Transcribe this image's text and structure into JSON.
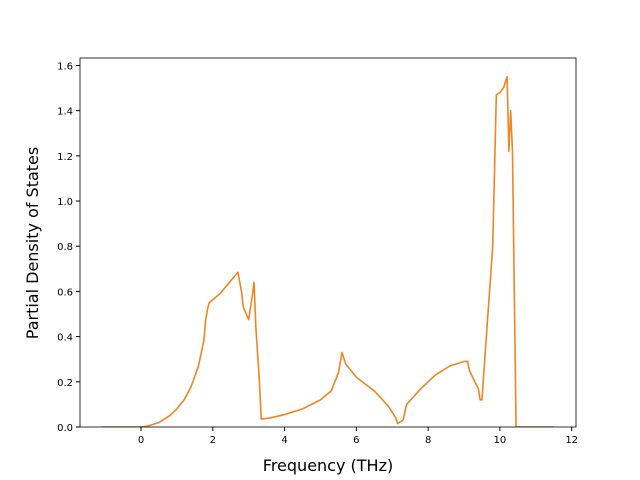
{
  "chart_data": {
    "type": "line",
    "xlabel": "Frequency (THz)",
    "ylabel": "Partial Density of States",
    "color": "#f08526",
    "x": [
      -1.1,
      0,
      0.2,
      0.5,
      0.8,
      1.0,
      1.2,
      1.4,
      1.6,
      1.75,
      1.8,
      1.85,
      1.9,
      2.2,
      2.7,
      2.8,
      2.85,
      3.0,
      3.1,
      3.15,
      3.2,
      3.3,
      3.35,
      3.6,
      4.0,
      4.5,
      5.0,
      5.3,
      5.5,
      5.6,
      5.7,
      6.0,
      6.5,
      6.9,
      7.1,
      7.15,
      7.3,
      7.4,
      7.8,
      8.2,
      8.6,
      9.0,
      9.1,
      9.15,
      9.3,
      9.4,
      9.45,
      9.5,
      9.6,
      9.8,
      9.9,
      10.0,
      10.1,
      10.2,
      10.25,
      10.3,
      10.35,
      10.45,
      11.5
    ],
    "values": [
      0,
      0,
      0.005,
      0.02,
      0.05,
      0.08,
      0.12,
      0.18,
      0.27,
      0.38,
      0.47,
      0.52,
      0.55,
      0.59,
      0.685,
      0.6,
      0.53,
      0.475,
      0.58,
      0.64,
      0.44,
      0.2,
      0.035,
      0.04,
      0.055,
      0.08,
      0.12,
      0.16,
      0.24,
      0.33,
      0.28,
      0.22,
      0.16,
      0.09,
      0.04,
      0.015,
      0.03,
      0.1,
      0.17,
      0.23,
      0.27,
      0.29,
      0.29,
      0.25,
      0.2,
      0.17,
      0.12,
      0.12,
      0.35,
      0.8,
      1.47,
      1.48,
      1.5,
      1.55,
      1.22,
      1.4,
      1.22,
      0,
      0
    ],
    "xlim": [
      -1.7,
      12.12
    ],
    "xticks": [
      0,
      2,
      4,
      6,
      8,
      10,
      12
    ],
    "ylim": [
      0,
      1.633
    ],
    "yticks": [
      {
        "value": 0,
        "label": "0.0"
      },
      0.2,
      0.4,
      0.6,
      0.8,
      {
        "value": 1,
        "label": "1.0"
      },
      1.2,
      1.4,
      1.6
    ],
    "grid": false
  }
}
